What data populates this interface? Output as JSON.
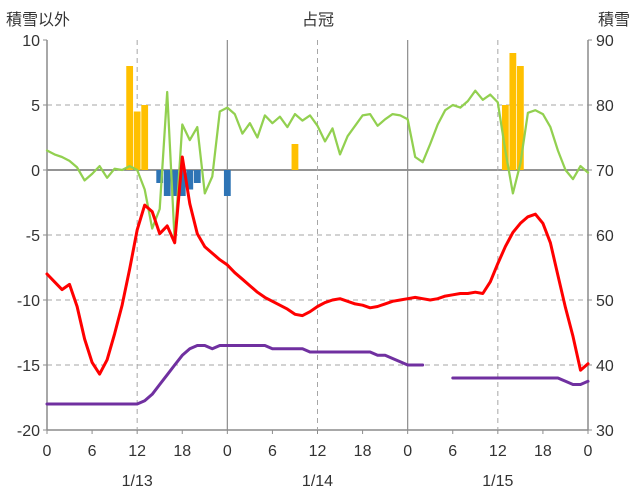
{
  "chart_meta": {
    "title": "占冠",
    "left_axis_title": "積雪以外",
    "right_axis_title": "積雪"
  },
  "chart_data": {
    "type": "line",
    "title": "占冠",
    "x_unit": "hour",
    "x_range": [
      0,
      72
    ],
    "x_tick_interval": 6,
    "x_tick_labels": [
      "0",
      "6",
      "12",
      "18",
      "0",
      "6",
      "12",
      "18",
      "0",
      "6",
      "12",
      "18",
      "0"
    ],
    "date_labels": [
      {
        "label": "1/13",
        "hour": 12
      },
      {
        "label": "1/14",
        "hour": 36
      },
      {
        "label": "1/15",
        "hour": 60
      }
    ],
    "left_axis": {
      "title": "積雪以外",
      "min": -20,
      "max": 10,
      "ticks": [
        10,
        5,
        0,
        -5,
        -10,
        -15,
        -20
      ]
    },
    "right_axis": {
      "title": "積雪",
      "min": 30,
      "max": 90,
      "ticks": [
        90,
        80,
        70,
        60,
        50,
        40,
        30
      ]
    },
    "grid": true,
    "legend": "none",
    "series": [
      {
        "name": "green-line",
        "color": "#92D050",
        "axis": "left",
        "width": 2.25,
        "values": [
          1.5,
          1.2,
          1.0,
          0.7,
          0.2,
          -0.8,
          -0.3,
          0.3,
          -0.6,
          0.1,
          0.0,
          0.3,
          0.0,
          -1.5,
          -4.5,
          -3.0,
          6.0,
          -5.5,
          3.5,
          2.3,
          3.3,
          -1.8,
          -0.5,
          4.5,
          4.8,
          4.3,
          2.8,
          3.6,
          2.5,
          4.2,
          3.6,
          4.1,
          3.3,
          4.3,
          3.8,
          4.2,
          3.4,
          2.2,
          3.2,
          1.2,
          2.6,
          3.4,
          4.2,
          4.3,
          3.4,
          3.9,
          4.3,
          4.2,
          3.9,
          1.0,
          0.6,
          2.0,
          3.5,
          4.6,
          5.0,
          4.8,
          5.3,
          6.1,
          5.4,
          5.8,
          5.2,
          1.5,
          -1.8,
          0.5,
          4.4,
          4.6,
          4.3,
          3.3,
          1.5,
          0.0,
          -0.7,
          0.3,
          -0.2
        ]
      },
      {
        "name": "purple-line",
        "color": "#7030A0",
        "axis": "right",
        "width": 3,
        "values": [
          34,
          34,
          34,
          34,
          34,
          34,
          34,
          34,
          34,
          34,
          34,
          34,
          34,
          34.5,
          35.5,
          37,
          38.5,
          40,
          41.5,
          42.5,
          43,
          43,
          42.5,
          43,
          43,
          43,
          43,
          43,
          43,
          43,
          42.5,
          42.5,
          42.5,
          42.5,
          42.5,
          42,
          42,
          42,
          42,
          42,
          42,
          42,
          42,
          42,
          41.5,
          41.5,
          41,
          40.5,
          40,
          40,
          40,
          null,
          null,
          null,
          38,
          38,
          38,
          38,
          38,
          38,
          38,
          38,
          38,
          38,
          38,
          38,
          38,
          38,
          38,
          37.5,
          37,
          37,
          37.5
        ]
      },
      {
        "name": "red-line",
        "color": "#FF0000",
        "axis": "left",
        "width": 3,
        "values": [
          -8.0,
          -8.6,
          -9.2,
          -8.8,
          -10.5,
          -13.0,
          -14.8,
          -15.7,
          -14.6,
          -12.6,
          -10.4,
          -7.6,
          -4.6,
          -2.7,
          -3.2,
          -4.9,
          -4.3,
          -5.6,
          1.0,
          -2.6,
          -4.9,
          -5.9,
          -6.4,
          -6.9,
          -7.3,
          -7.9,
          -8.4,
          -8.9,
          -9.4,
          -9.8,
          -10.1,
          -10.4,
          -10.7,
          -11.1,
          -11.2,
          -10.9,
          -10.5,
          -10.2,
          -10.0,
          -9.9,
          -10.1,
          -10.3,
          -10.4,
          -10.6,
          -10.5,
          -10.3,
          -10.1,
          -10.0,
          -9.9,
          -9.8,
          -9.9,
          -10.0,
          -9.9,
          -9.7,
          -9.6,
          -9.5,
          -9.5,
          -9.4,
          -9.5,
          -8.6,
          -7.2,
          -5.9,
          -4.8,
          -4.1,
          -3.6,
          -3.4,
          -4.1,
          -5.6,
          -8.1,
          -10.6,
          -12.8,
          -15.4,
          -14.9
        ]
      }
    ],
    "bars": [
      {
        "name": "orange-bars",
        "color": "#FFC000",
        "axis": "left",
        "points": [
          [
            11,
            8
          ],
          [
            12,
            4.5
          ],
          [
            13,
            5
          ],
          [
            33,
            2
          ],
          [
            61,
            5
          ],
          [
            62,
            9
          ],
          [
            63,
            8
          ]
        ]
      },
      {
        "name": "blue-bars",
        "color": "#2E74B5",
        "axis": "left",
        "points": [
          [
            15,
            -1
          ],
          [
            16,
            -2
          ],
          [
            17,
            -2
          ],
          [
            18,
            -2
          ],
          [
            19,
            -1.5
          ],
          [
            20,
            -1
          ],
          [
            24,
            -2
          ]
        ]
      }
    ],
    "colors": {
      "grid_dashed": "#A6A6A6",
      "grid_solid": "#8C8C8C",
      "zero_line": "#707070",
      "axis_text": "#333333"
    }
  }
}
